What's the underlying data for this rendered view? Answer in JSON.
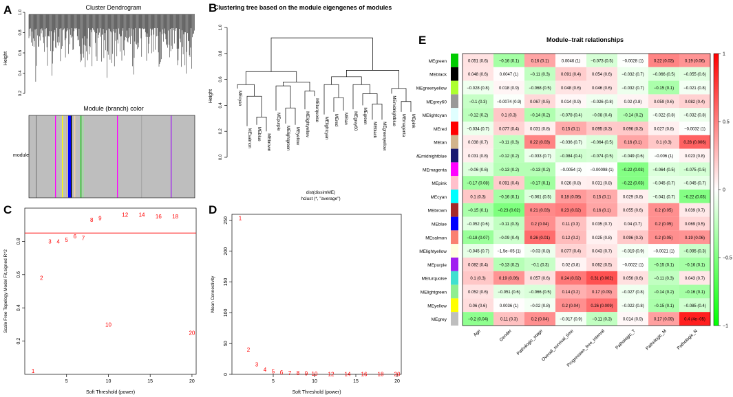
{
  "panels": {
    "A": {
      "label": "A",
      "title": "Cluster Dendrogram",
      "ylabel": "Height",
      "yticks": [
        "0.2",
        "0.4",
        "0.6",
        "0.8",
        "1.0"
      ],
      "color_title": "Module (branch) color",
      "color_row_label": "module",
      "module_bar_colors": [
        "#a8a8a8",
        "#ff00ff",
        "#ffff00",
        "#0000ff",
        "#000000",
        "#00cc00",
        "#ff69b4",
        "#ffd39b",
        "#808080",
        "#8b4513",
        "#40e0d0",
        "#90ee90"
      ]
    },
    "B": {
      "label": "B",
      "title": "Clustering tree based on the module eigengenes of modules",
      "ylabel": "Height",
      "yticks": [
        "0.0",
        "0.2",
        "0.4",
        "0.6",
        "0.8",
        "1.0"
      ],
      "leaves": [
        "MEcyan",
        "MEsalmon",
        "MEblue",
        "MEbrown",
        "MEpurple",
        "MElightgreen",
        "MEyellow",
        "MElightyellow",
        "MEturquoise",
        "MElightcyan",
        "MEred",
        "MEtan",
        "MEgrey60",
        "MEgreen",
        "MEblack",
        "MEgreenyellow",
        "MEmidnightblue",
        "MEmagenta",
        "MEpink"
      ],
      "xlabel1": "dist(dissimME)",
      "xlabel2": "hclust (*, \"average\")"
    },
    "E": {
      "label": "E",
      "title": "Module–trait relationships",
      "traits": [
        "Age",
        "Gender",
        "Pathologic_stage",
        "Overall_survival_time",
        "Progression_free_interval",
        "Pathologic_T",
        "Pathologic_M",
        "Pathologic_N"
      ],
      "modules": [
        {
          "name": "MEgreen",
          "color": "#00cc00",
          "cells": [
            "0.051 (0.6)",
            "−0.16 (0.1)",
            "0.16 (0.1)",
            "0.0046 (1)",
            "−0.073 (0.5)",
            "−0.0028 (1)",
            "0.22 (0.03)",
            "0.19 (0.06)"
          ],
          "r": [
            0.051,
            -0.16,
            0.16,
            0.0046,
            -0.073,
            -0.0028,
            0.22,
            0.19
          ]
        },
        {
          "name": "MEblack",
          "color": "#000000",
          "cells": [
            "0.048 (0.6)",
            "0.0047 (1)",
            "−0.11 (0.3)",
            "0.091 (0.4)",
            "0.054 (0.6)",
            "−0.032 (0.7)",
            "−0.066 (0.5)",
            "−0.055 (0.6)"
          ],
          "r": [
            0.048,
            0.0047,
            -0.11,
            0.091,
            0.054,
            -0.032,
            -0.066,
            -0.055
          ]
        },
        {
          "name": "MEgreenyellow",
          "color": "#adff2f",
          "cells": [
            "−0.028 (0.8)",
            "0.018 (0.9)",
            "−0.068 (0.5)",
            "0.048 (0.6)",
            "0.046 (0.6)",
            "−0.032 (0.7)",
            "−0.15 (0.1)",
            "−0.021 (0.8)"
          ],
          "r": [
            -0.028,
            0.018,
            -0.068,
            0.048,
            0.046,
            -0.032,
            -0.15,
            -0.021
          ]
        },
        {
          "name": "MEgrey60",
          "color": "#999999",
          "cells": [
            "−0.1 (0.3)",
            "−0.0074 (0.9)",
            "0.067 (0.5)",
            "0.014 (0.9)",
            "−0.026 (0.8)",
            "0.02 (0.8)",
            "0.059 (0.6)",
            "0.082 (0.4)"
          ],
          "r": [
            -0.1,
            -0.0074,
            0.067,
            0.014,
            -0.026,
            0.02,
            0.059,
            0.082
          ]
        },
        {
          "name": "MElightcyan",
          "color": "#e0ffff",
          "cells": [
            "−0.12 (0.2)",
            "0.1 (0.3)",
            "−0.14 (0.2)",
            "−0.078 (0.4)",
            "−0.08 (0.4)",
            "−0.14 (0.2)",
            "−0.022 (0.8)",
            "−0.032 (0.8)"
          ],
          "r": [
            -0.12,
            0.1,
            -0.14,
            -0.078,
            -0.08,
            -0.14,
            -0.022,
            -0.032
          ]
        },
        {
          "name": "MEred",
          "color": "#ff0000",
          "cells": [
            "−0.034 (0.7)",
            "0.077 (0.4)",
            "0.031 (0.8)",
            "0.15 (0.1)",
            "0.095 (0.3)",
            "0.096 (0.3)",
            "0.027 (0.8)",
            "−0.0032 (1)"
          ],
          "r": [
            -0.034,
            0.077,
            0.031,
            0.15,
            0.095,
            0.096,
            0.027,
            -0.0032
          ]
        },
        {
          "name": "MEtan",
          "color": "#d2b48c",
          "cells": [
            "0.038 (0.7)",
            "−0.11 (0.3)",
            "0.22 (0.03)",
            "−0.036 (0.7)",
            "−0.064 (0.5)",
            "0.16 (0.1)",
            "0.1 (0.3)",
            "0.28 (0.006)"
          ],
          "r": [
            0.038,
            -0.11,
            0.22,
            -0.036,
            -0.064,
            0.16,
            0.1,
            0.28
          ]
        },
        {
          "name": "MEmidnightblue",
          "color": "#191970",
          "cells": [
            "0.031 (0.8)",
            "−0.12 (0.2)",
            "−0.033 (0.7)",
            "−0.084 (0.4)",
            "−0.074 (0.5)",
            "−0.049 (0.6)",
            "−0.006 (1)",
            "0.023 (0.8)"
          ],
          "r": [
            0.031,
            -0.12,
            -0.033,
            -0.084,
            -0.074,
            -0.049,
            -0.006,
            0.023
          ]
        },
        {
          "name": "MEmagenta",
          "color": "#ff00ff",
          "cells": [
            "−0.06 (0.6)",
            "−0.13 (0.2)",
            "−0.13 (0.2)",
            "−0.0054 (1)",
            "−0.00098 (1)",
            "−0.22 (0.03)",
            "−0.064 (0.5)",
            "−0.075 (0.5)"
          ],
          "r": [
            -0.06,
            -0.13,
            -0.13,
            -0.0054,
            -0.00098,
            -0.22,
            -0.064,
            -0.075
          ]
        },
        {
          "name": "MEpink",
          "color": "#ffc0cb",
          "cells": [
            "−0.17 (0.08)",
            "0.091 (0.4)",
            "−0.17 (0.1)",
            "0.026 (0.8)",
            "0.031 (0.8)",
            "−0.22 (0.03)",
            "−0.045 (0.7)",
            "−0.045 (0.7)"
          ],
          "r": [
            -0.17,
            0.091,
            -0.17,
            0.026,
            0.031,
            -0.22,
            -0.045,
            -0.045
          ]
        },
        {
          "name": "MEcyan",
          "color": "#00ffff",
          "cells": [
            "0.1 (0.3)",
            "−0.16 (0.1)",
            "−0.061 (0.5)",
            "0.18 (0.08)",
            "0.15 (0.1)",
            "0.029 (0.8)",
            "−0.041 (0.7)",
            "−0.22 (0.03)"
          ],
          "r": [
            0.1,
            -0.16,
            -0.061,
            0.18,
            0.15,
            0.029,
            -0.041,
            -0.22
          ]
        },
        {
          "name": "MEbrown",
          "color": "#a52a2a",
          "cells": [
            "−0.15 (0.1)",
            "−0.23 (0.02)",
            "0.21 (0.03)",
            "0.23 (0.02)",
            "0.16 (0.1)",
            "0.055 (0.6)",
            "0.2 (0.05)",
            "0.039 (0.7)"
          ],
          "r": [
            -0.15,
            -0.23,
            0.21,
            0.23,
            0.16,
            0.055,
            0.2,
            0.039
          ]
        },
        {
          "name": "MEblue",
          "color": "#0000ff",
          "cells": [
            "−0.052 (0.6)",
            "−0.11 (0.3)",
            "0.2 (0.04)",
            "0.11 (0.3)",
            "0.035 (0.7)",
            "0.04 (0.7)",
            "0.2 (0.05)",
            "0.069 (0.5)"
          ],
          "r": [
            -0.052,
            -0.11,
            0.2,
            0.11,
            0.035,
            0.04,
            0.2,
            0.069
          ]
        },
        {
          "name": "MEsalmon",
          "color": "#fa8072",
          "cells": [
            "−0.18 (0.07)",
            "−0.09 (0.4)",
            "0.26 (0.01)",
            "0.12 (0.2)",
            "0.025 (0.8)",
            "0.096 (0.3)",
            "0.2 (0.05)",
            "0.19 (0.06)"
          ],
          "r": [
            -0.18,
            -0.09,
            0.26,
            0.12,
            0.025,
            0.096,
            0.2,
            0.19
          ]
        },
        {
          "name": "MElightyellow",
          "color": "#ffffe0",
          "cells": [
            "−0.045 (0.7)",
            "−1.5e−05 (1)",
            "−0.03 (0.8)",
            "0.077 (0.4)",
            "0.043 (0.7)",
            "−0.019 (0.9)",
            "−0.0021 (1)",
            "−0.095 (0.3)"
          ],
          "r": [
            -0.045,
            0,
            -0.03,
            0.077,
            0.043,
            -0.019,
            -0.0021,
            -0.095
          ]
        },
        {
          "name": "MEpurple",
          "color": "#a020f0",
          "cells": [
            "0.082 (0.4)",
            "−0.13 (0.2)",
            "−0.1 (0.3)",
            "0.02 (0.8)",
            "0.062 (0.5)",
            "−0.0022 (1)",
            "−0.15 (0.1)",
            "−0.16 (0.1)"
          ],
          "r": [
            0.082,
            -0.13,
            -0.1,
            0.02,
            0.062,
            -0.0022,
            -0.15,
            -0.16
          ]
        },
        {
          "name": "MEturquoise",
          "color": "#40e0d0",
          "cells": [
            "0.1 (0.3)",
            "0.19 (0.06)",
            "0.057 (0.6)",
            "0.24 (0.02)",
            "0.31 (0.002)",
            "0.056 (0.6)",
            "−0.11 (0.3)",
            "0.043 (0.7)"
          ],
          "r": [
            0.1,
            0.19,
            0.057,
            0.24,
            0.31,
            0.056,
            -0.11,
            0.043
          ]
        },
        {
          "name": "MElightgreen",
          "color": "#90ee90",
          "cells": [
            "0.052 (0.6)",
            "−0.051 (0.6)",
            "−0.066 (0.5)",
            "0.14 (0.2)",
            "0.17 (0.09)",
            "−0.027 (0.8)",
            "−0.14 (0.2)",
            "−0.16 (0.1)"
          ],
          "r": [
            0.052,
            -0.051,
            -0.066,
            0.14,
            0.17,
            -0.027,
            -0.14,
            -0.16
          ]
        },
        {
          "name": "MEyellow",
          "color": "#ffff00",
          "cells": [
            "0.06 (0.6)",
            "0.0036 (1)",
            "−0.02 (0.8)",
            "0.2 (0.04)",
            "0.26 (0.009)",
            "−0.022 (0.8)",
            "−0.15 (0.1)",
            "−0.085 (0.4)"
          ],
          "r": [
            0.06,
            0.0036,
            -0.02,
            0.2,
            0.26,
            -0.022,
            -0.15,
            -0.085
          ]
        },
        {
          "name": "MEgrey",
          "color": "#bebebe",
          "cells": [
            "−0.2 (0.04)",
            "0.11 (0.3)",
            "0.2 (0.04)",
            "−0.017 (0.9)",
            "−0.11 (0.3)",
            "0.014 (0.9)",
            "0.17 (0.09)",
            "0.4 (4e−05)"
          ],
          "r": [
            -0.2,
            0.11,
            0.2,
            -0.017,
            -0.11,
            0.014,
            0.17,
            0.4
          ]
        }
      ],
      "legend_ticks": [
        "1",
        "0.5",
        "0",
        "−0.5",
        "−1"
      ],
      "legend_values": [
        1,
        0.5,
        0,
        -0.5,
        -1
      ],
      "colors": {
        "pos": "#ff0000",
        "mid": "#ffffff",
        "neg": "#00ff00"
      }
    }
  },
  "chart_data": [
    {
      "panel": "C",
      "type": "scatter",
      "title": "",
      "xlabel": "Soft Threshold (power)",
      "ylabel": "Scale Free Topology Model Fit,signed R^2",
      "x": [
        1,
        2,
        3,
        4,
        5,
        6,
        7,
        8,
        9,
        10,
        12,
        14,
        16,
        18,
        20
      ],
      "y": [
        0.02,
        0.58,
        0.8,
        0.8,
        0.81,
        0.83,
        0.82,
        0.93,
        0.94,
        0.3,
        0.96,
        0.96,
        0.95,
        0.95,
        0.25
      ],
      "point_labels": [
        "1",
        "2",
        "3",
        "4",
        "5",
        "6",
        "7",
        "8",
        "9",
        "10",
        "12",
        "14",
        "16",
        "18",
        "20"
      ],
      "xticks": [
        5,
        10,
        15,
        20
      ],
      "yticks": [
        0.2,
        0.4,
        0.6,
        0.8
      ],
      "xlim": [
        0,
        20.5
      ],
      "ylim": [
        0,
        1
      ],
      "hline": 0.85,
      "point_color": "#ff0000",
      "line_color": "#ff0000"
    },
    {
      "panel": "D",
      "type": "scatter",
      "title": "",
      "xlabel": "Soft Threshold (power)",
      "ylabel": "Mean Connectivity",
      "x": [
        1,
        2,
        3,
        4,
        5,
        6,
        7,
        8,
        9,
        10,
        12,
        14,
        16,
        18,
        20
      ],
      "y": [
        254,
        40,
        16,
        8,
        5,
        3.5,
        2.5,
        2,
        1.5,
        1.2,
        0.8,
        0.6,
        0.5,
        0.4,
        0.3
      ],
      "point_labels": [
        "1",
        "2",
        "3",
        "4",
        "5",
        "6",
        "7",
        "8",
        "9",
        "10",
        "12",
        "14",
        "16",
        "18",
        "20"
      ],
      "xticks": [
        5,
        10,
        15,
        20
      ],
      "yticks": [
        0,
        50,
        100,
        150,
        200,
        250
      ],
      "xlim": [
        0,
        20.5
      ],
      "ylim": [
        0,
        260
      ],
      "point_color": "#ff0000"
    }
  ],
  "panel_labels": {
    "C": "C",
    "D": "D"
  }
}
